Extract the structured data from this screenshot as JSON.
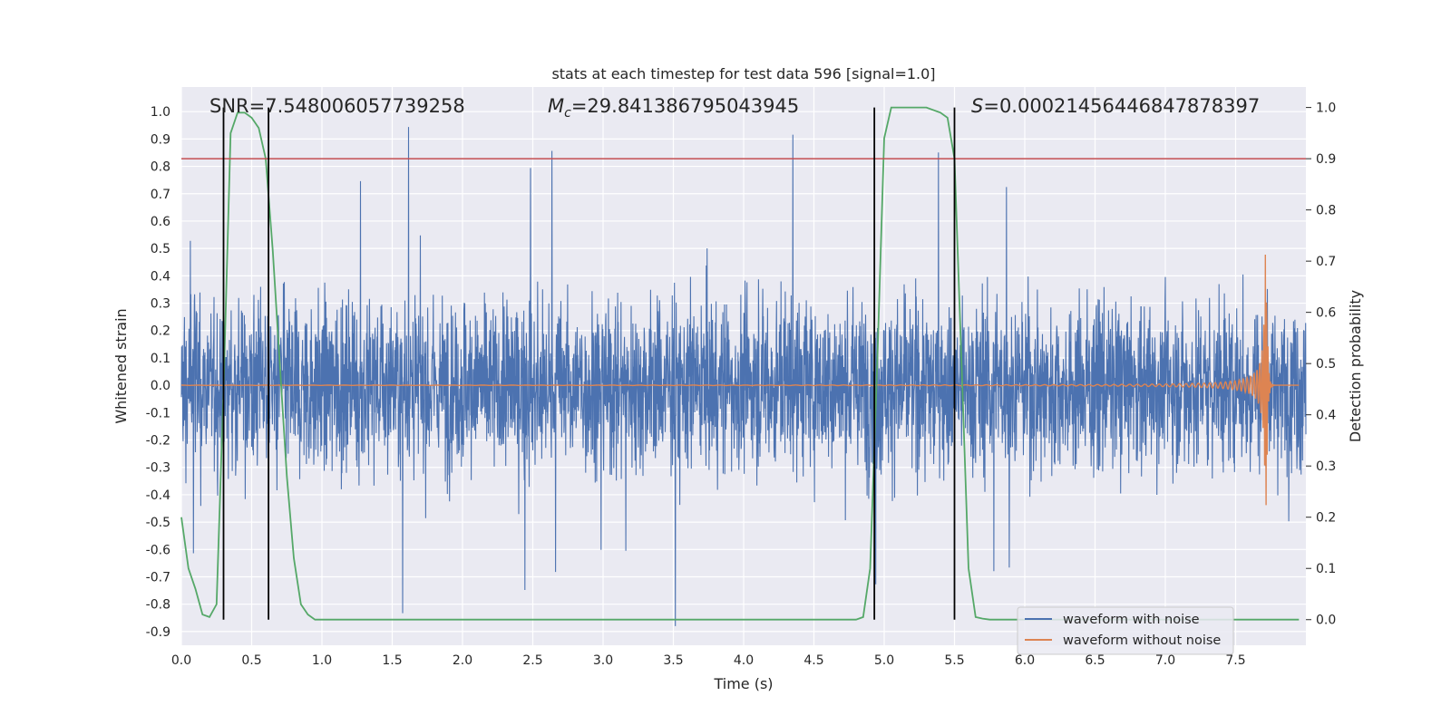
{
  "chart_data": {
    "type": "line",
    "title": "stats at each timestep for test data 596 [signal=1.0]",
    "xlabel": "Time (s)",
    "ylabel_left": "Whitened strain",
    "ylabel_right": "Detection probability",
    "xlim": [
      0.0,
      8.0
    ],
    "ylim_left": [
      -0.95,
      1.09
    ],
    "ylim_right": [
      -0.05,
      1.04
    ],
    "x_ticks": [
      "0.0",
      "0.5",
      "1.0",
      "1.5",
      "2.0",
      "2.5",
      "3.0",
      "3.5",
      "4.0",
      "4.5",
      "5.0",
      "5.5",
      "6.0",
      "6.5",
      "7.0",
      "7.5"
    ],
    "y_ticks_left": [
      "1.0",
      "0.9",
      "0.8",
      "0.7",
      "0.6",
      "0.5",
      "0.4",
      "0.3",
      "0.2",
      "0.1",
      "0.0",
      "-0.1",
      "-0.2",
      "-0.3",
      "-0.4",
      "-0.5",
      "-0.6",
      "-0.7",
      "-0.8",
      "-0.9"
    ],
    "y_ticks_right": [
      "1.0",
      "0.9",
      "0.8",
      "0.7",
      "0.6",
      "0.5",
      "0.4",
      "0.3",
      "0.2",
      "0.1",
      "0.0"
    ],
    "annotations": {
      "snr": "SNR=7.548006057739258",
      "mc_symbol": "M",
      "mc_subscript": "c",
      "mc_value": "=29.841386795043945",
      "s_symbol": "S",
      "s_value": "=0.00021456446847878397"
    },
    "legend": {
      "location": "lower right",
      "entries": [
        "waveform with noise",
        "waveform without noise"
      ]
    },
    "threshold": {
      "axis": "right",
      "value": 0.9
    },
    "vertical_lines_s": [
      0.3,
      0.62,
      4.93,
      5.5
    ],
    "detection_probability": {
      "x": [
        0.0,
        0.05,
        0.1,
        0.15,
        0.2,
        0.25,
        0.3,
        0.35,
        0.4,
        0.45,
        0.5,
        0.55,
        0.6,
        0.65,
        0.7,
        0.75,
        0.8,
        0.85,
        0.9,
        0.95,
        1.0,
        1.5,
        2.0,
        2.5,
        3.0,
        3.5,
        4.0,
        4.5,
        4.75,
        4.8,
        4.85,
        4.9,
        4.95,
        5.0,
        5.05,
        5.1,
        5.2,
        5.3,
        5.4,
        5.45,
        5.5,
        5.55,
        5.6,
        5.65,
        5.7,
        5.75,
        5.8,
        6.0,
        6.5,
        7.0,
        7.5,
        7.95
      ],
      "y": [
        0.2,
        0.1,
        0.06,
        0.01,
        0.005,
        0.03,
        0.45,
        0.95,
        0.99,
        0.99,
        0.98,
        0.96,
        0.9,
        0.72,
        0.5,
        0.28,
        0.12,
        0.03,
        0.01,
        0.0,
        0.0,
        0.0,
        0.0,
        0.0,
        0.0,
        0.0,
        0.0,
        0.0,
        0.0,
        0.0,
        0.005,
        0.1,
        0.5,
        0.94,
        1.0,
        1.0,
        1.0,
        1.0,
        0.99,
        0.98,
        0.9,
        0.5,
        0.1,
        0.005,
        0.002,
        0.0,
        0.0,
        0.0,
        0.0,
        0.0,
        0.0,
        0.0
      ]
    },
    "series": [
      {
        "name": "waveform with noise",
        "axis": "left",
        "color": "#4c72b0",
        "kind": "noisy strain, envelope ~±0.45 with spikes to ~±0.98"
      },
      {
        "name": "waveform without noise",
        "axis": "left",
        "color": "#dd8452",
        "kind": "chirp, amplitude rising to ~0.48 near 7.7 s, peak at 7.72 s"
      },
      {
        "name": "detection probability",
        "axis": "right",
        "color": "#55a868"
      },
      {
        "name": "threshold",
        "axis": "right",
        "color": "#c44e52"
      }
    ]
  },
  "colors": {
    "plot_background": "#eaeaf2",
    "grid": "#ffffff",
    "noisy": "#4c72b0",
    "clean": "#dd8452",
    "probability": "#55a868",
    "threshold": "#c44e52",
    "vline": "#000000"
  }
}
